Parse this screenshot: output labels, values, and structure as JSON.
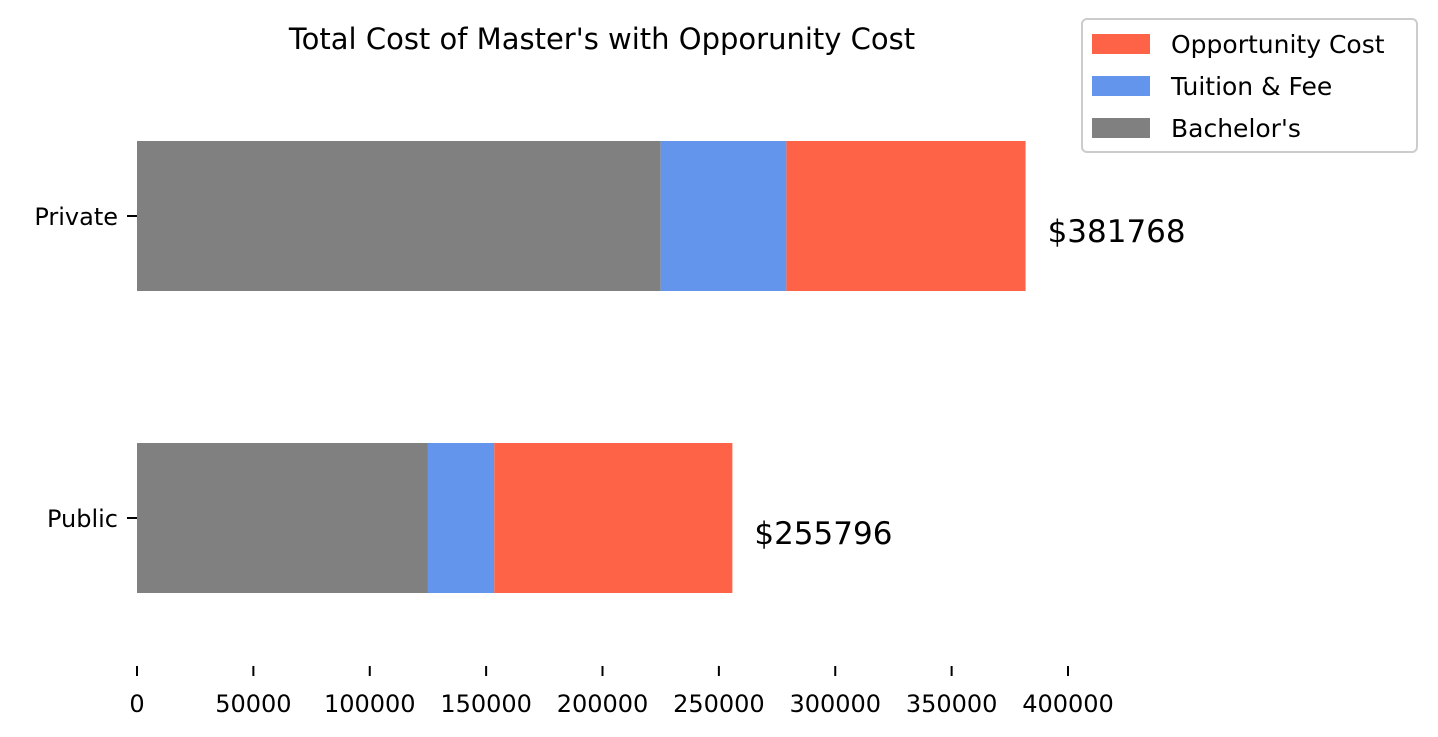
{
  "chart_data": {
    "type": "bar",
    "orientation": "horizontal",
    "stacked": true,
    "title": "Total Cost of Master's with Opporunity Cost",
    "xlabel": "",
    "ylabel": "",
    "categories": [
      "Private",
      "Public"
    ],
    "series": [
      {
        "name": "Bachelor's",
        "color": "#808080",
        "values": [
          225000,
          125000
        ]
      },
      {
        "name": "Tuition & Fee",
        "color": "#6495ED",
        "values": [
          54000,
          28500
        ]
      },
      {
        "name": "Opportunity Cost",
        "color": "#FF6347",
        "values": [
          102768,
          102296
        ]
      }
    ],
    "totals": [
      381768,
      255796
    ],
    "total_labels": [
      "$381768",
      "$255796"
    ],
    "xlim": [
      0,
      400000
    ],
    "xticks": [
      0,
      50000,
      100000,
      150000,
      200000,
      250000,
      300000,
      350000,
      400000
    ],
    "xtick_labels": [
      "0",
      "50000",
      "100000",
      "150000",
      "200000",
      "250000",
      "300000",
      "350000",
      "400000"
    ],
    "grid": false,
    "legend": {
      "placement": "top-right",
      "entries": [
        "Opportunity Cost",
        "Tuition & Fee",
        "Bachelor's"
      ]
    }
  }
}
